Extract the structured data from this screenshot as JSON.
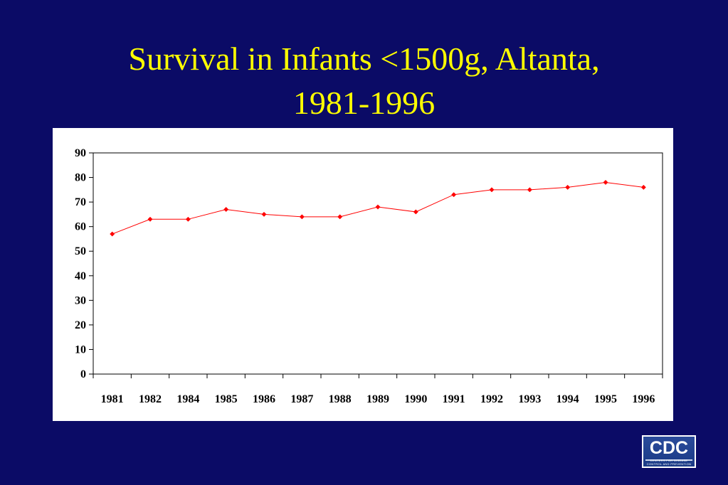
{
  "title": {
    "line1": "Survival in Infants <1500g, Altanta,",
    "line2": "1981-1996"
  },
  "colors": {
    "background": "#0b0b66",
    "title": "#ffff00",
    "series": "#ff0000"
  },
  "logo": {
    "text": "CDC",
    "subtext": "CENTERS FOR DISEASE CONTROL AND PREVENTION"
  },
  "chart_data": {
    "type": "line",
    "categories": [
      "1981",
      "1982",
      "1984",
      "1985",
      "1986",
      "1987",
      "1988",
      "1989",
      "1990",
      "1991",
      "1992",
      "1993",
      "1994",
      "1995",
      "1996"
    ],
    "series": [
      {
        "values": [
          57,
          63,
          63,
          67,
          65,
          64,
          64,
          68,
          66,
          73,
          75,
          75,
          76,
          78,
          76
        ]
      }
    ],
    "ylim": [
      0,
      90
    ],
    "yticks": [
      0,
      10,
      20,
      30,
      40,
      50,
      60,
      70,
      80,
      90
    ],
    "grid": false,
    "legend": "none",
    "xlabel": "",
    "ylabel": ""
  }
}
